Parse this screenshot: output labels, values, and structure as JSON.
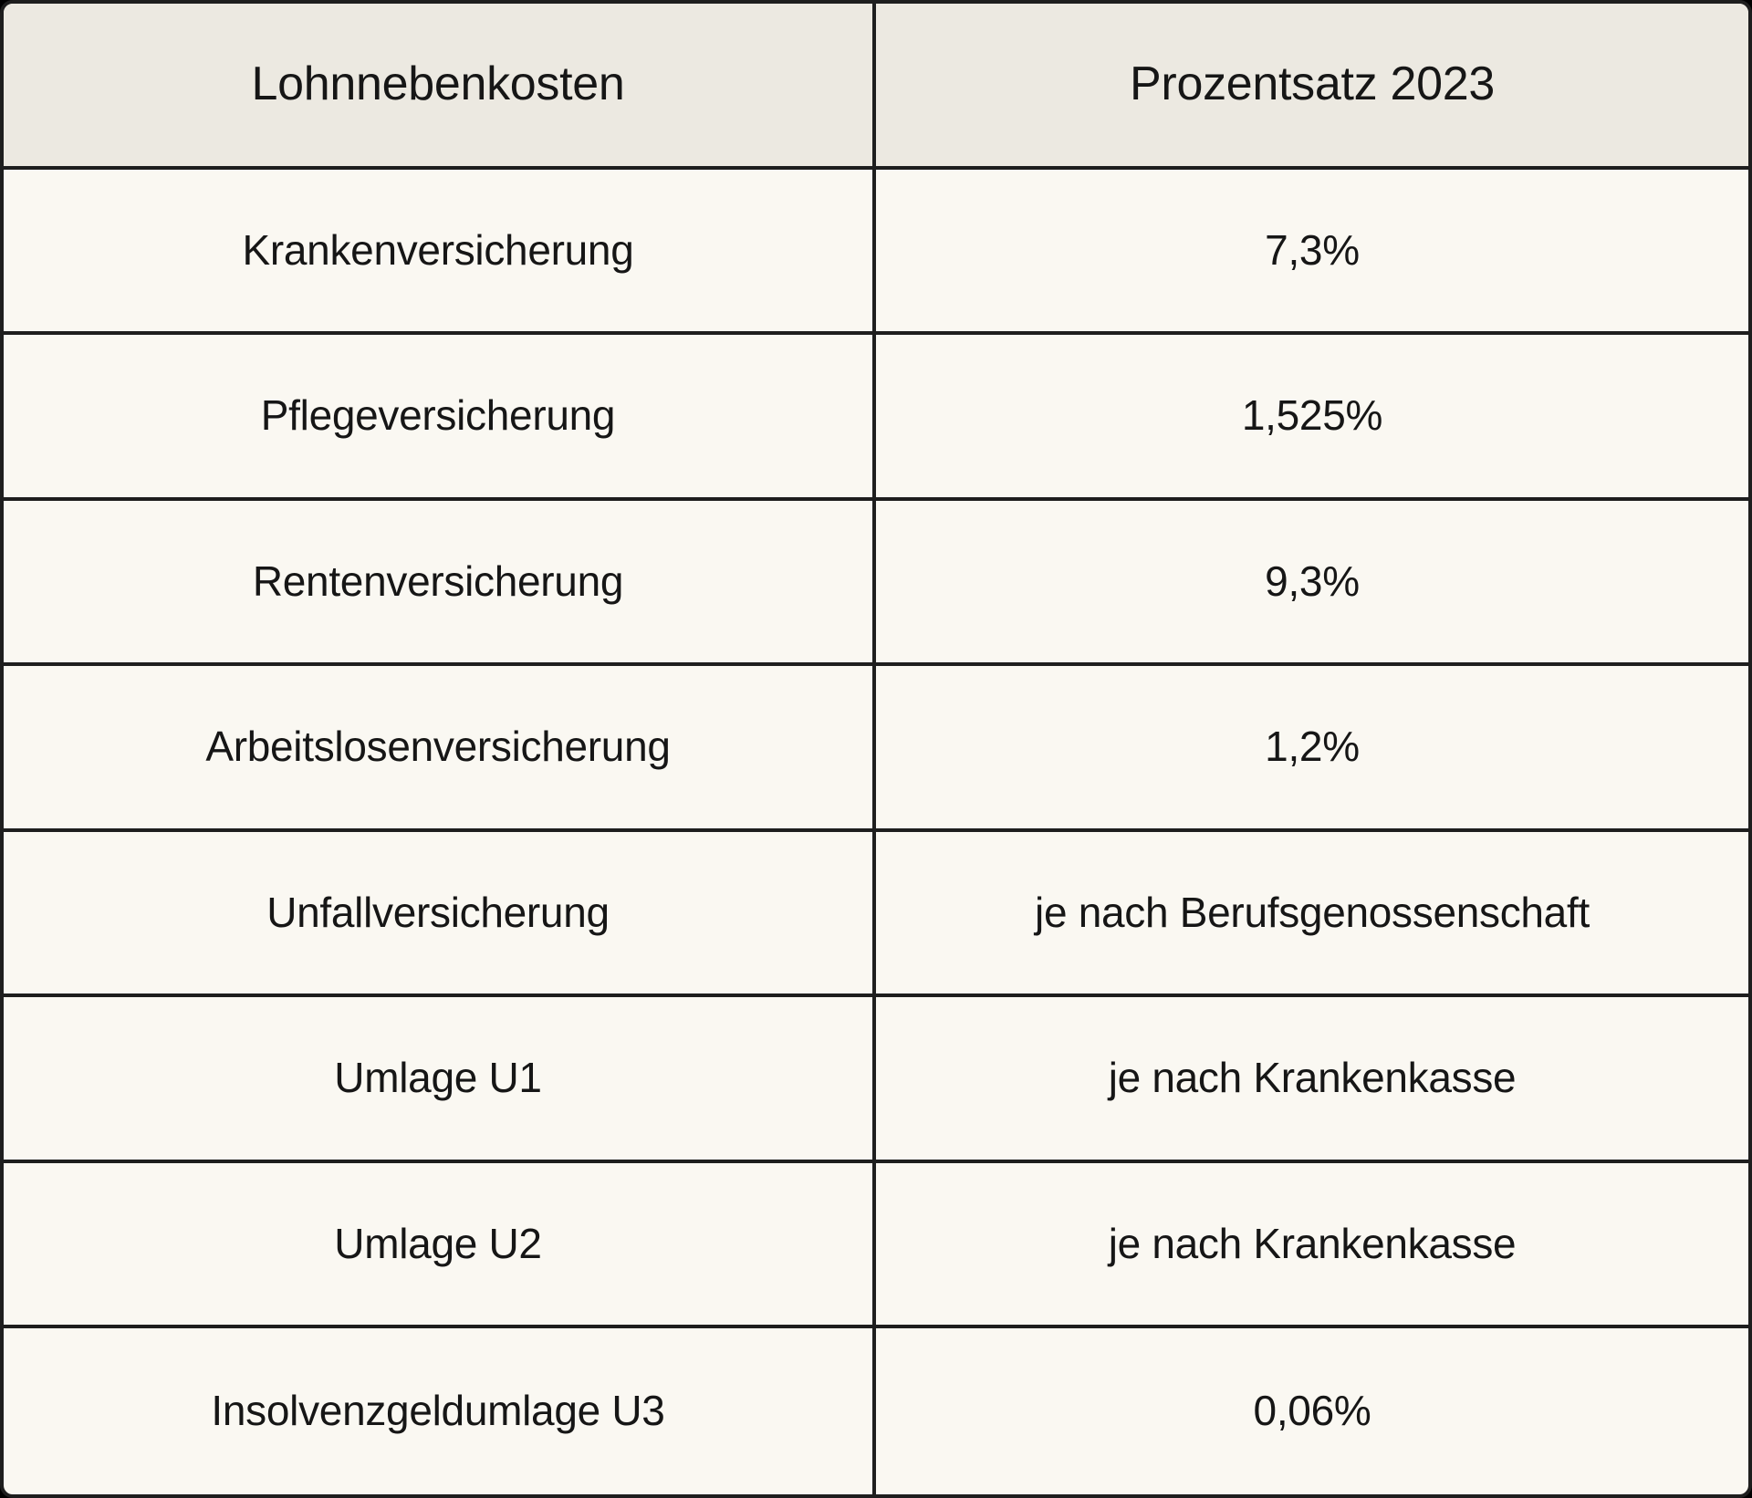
{
  "table": {
    "columns": [
      "Lohnnebenkosten",
      "Prozentsatz 2023"
    ],
    "rows": [
      {
        "label": "Krankenversicherung",
        "value": "7,3%"
      },
      {
        "label": "Pflegeversicherung",
        "value": "1,525%"
      },
      {
        "label": "Rentenversicherung",
        "value": "9,3%"
      },
      {
        "label": "Arbeitslosenversicherung",
        "value": "1,2%"
      },
      {
        "label": "Unfallversicherung",
        "value": "je nach Berufsgenossenschaft"
      },
      {
        "label": "Umlage U1",
        "value": "je nach Krankenkasse"
      },
      {
        "label": "Umlage U2",
        "value": "je nach Krankenkasse"
      },
      {
        "label": "Insolvenzgeldumlage U3",
        "value": "0,06%"
      }
    ]
  },
  "colors": {
    "page_bg": "#000000",
    "header_bg": "#ECE9E1",
    "row_bg": "#FAF8F2",
    "border": "#1E1E1E",
    "text": "#161616"
  }
}
